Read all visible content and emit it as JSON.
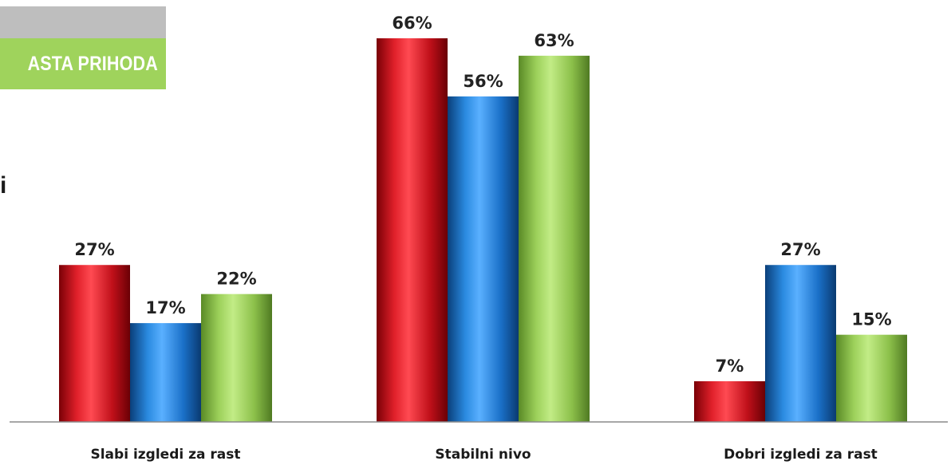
{
  "header": {
    "banner_text": "ASTA PRIHODA",
    "side_fragment": "i"
  },
  "colors": {
    "series": [
      "#c8101a",
      "#1a73c8",
      "#8fbf4a"
    ],
    "banner_green": "#9fd35c",
    "banner_gray": "#bebebe"
  },
  "chart_data": {
    "type": "bar",
    "title": "",
    "xlabel": "",
    "ylabel": "",
    "ylim": [
      0,
      70
    ],
    "grid": false,
    "legend": "none",
    "categories": [
      "Slabi izgledi za rast",
      "Stabilni nivo",
      "Dobri izgledi za rast"
    ],
    "series": [
      {
        "values": [
          27,
          66,
          7
        ],
        "labels": [
          "27%",
          "66%",
          "7%"
        ]
      },
      {
        "values": [
          17,
          56,
          27
        ],
        "labels": [
          "17%",
          "56%",
          "27%"
        ]
      },
      {
        "values": [
          22,
          63,
          15
        ],
        "labels": [
          "22%",
          "63%",
          "15%"
        ]
      }
    ]
  }
}
